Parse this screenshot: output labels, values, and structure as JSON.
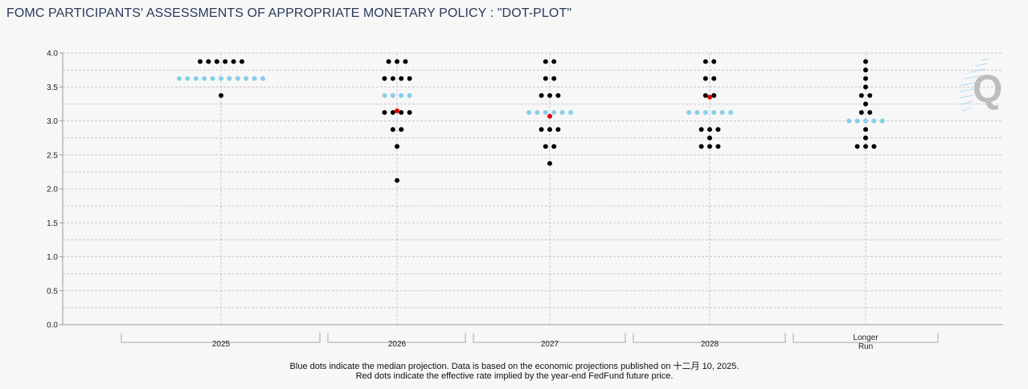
{
  "title": "FOMC PARTICIPANTS' ASSESSMENTS OF APPROPRIATE MONETARY POLICY : \"DOT-PLOT\"",
  "footnote": {
    "line1": "Blue dots indicate the median projection. Data is based on the economic projections published on 十二月 10, 2025.",
    "line2": "Red dots indicate the effective rate implied by the year-end FedFund future price."
  },
  "watermark": "Q",
  "colors": {
    "participant": "#000000",
    "median": "#87ceeb",
    "implied": "#e00000",
    "grid": "#c8c8c8",
    "axis": "#999999"
  },
  "chart_data": {
    "type": "scatter",
    "title": "FOMC PARTICIPANTS' ASSESSMENTS OF APPROPRIATE MONETARY POLICY : \"DOT-PLOT\"",
    "xlabel": "",
    "ylabel": "",
    "ylim": [
      0,
      4
    ],
    "yticks": [
      "0.0",
      "0.5",
      "1.0",
      "1.5",
      "2.0",
      "2.5",
      "3.0",
      "3.5",
      "4.0"
    ],
    "grid": true,
    "categories": [
      {
        "label": [
          "2025"
        ],
        "key": "2025"
      },
      {
        "label": [
          "2026"
        ],
        "key": "2026"
      },
      {
        "label": [
          "2027"
        ],
        "key": "2027"
      },
      {
        "label": [
          "2028"
        ],
        "key": "2028"
      },
      {
        "label": [
          "Longer",
          "Run"
        ],
        "key": "longer"
      }
    ],
    "dots": {
      "2025": [
        {
          "rate": 3.875,
          "count": 6
        },
        {
          "rate": 3.375,
          "count": 1
        }
      ],
      "2026": [
        {
          "rate": 3.875,
          "count": 3
        },
        {
          "rate": 3.625,
          "count": 4
        },
        {
          "rate": 3.125,
          "count": 4
        },
        {
          "rate": 2.875,
          "count": 2
        },
        {
          "rate": 2.625,
          "count": 1
        },
        {
          "rate": 2.125,
          "count": 1
        }
      ],
      "2027": [
        {
          "rate": 3.875,
          "count": 2
        },
        {
          "rate": 3.625,
          "count": 2
        },
        {
          "rate": 3.375,
          "count": 3
        },
        {
          "rate": 2.875,
          "count": 3
        },
        {
          "rate": 2.625,
          "count": 2
        },
        {
          "rate": 2.375,
          "count": 1
        }
      ],
      "2028": [
        {
          "rate": 3.875,
          "count": 2
        },
        {
          "rate": 3.625,
          "count": 2
        },
        {
          "rate": 3.375,
          "count": 2
        },
        {
          "rate": 2.875,
          "count": 3
        },
        {
          "rate": 2.75,
          "count": 1
        },
        {
          "rate": 2.625,
          "count": 3
        }
      ],
      "longer": [
        {
          "rate": 3.875,
          "count": 1
        },
        {
          "rate": 3.75,
          "count": 1
        },
        {
          "rate": 3.625,
          "count": 1
        },
        {
          "rate": 3.5,
          "count": 1
        },
        {
          "rate": 3.375,
          "count": 2
        },
        {
          "rate": 3.25,
          "count": 1
        },
        {
          "rate": 3.125,
          "count": 2
        },
        {
          "rate": 2.875,
          "count": 1
        },
        {
          "rate": 2.75,
          "count": 1
        },
        {
          "rate": 2.625,
          "count": 3
        }
      ]
    },
    "median": {
      "2025": {
        "rate": 3.625,
        "count": 11
      },
      "2026": {
        "rate": 3.375,
        "count": 4
      },
      "2027": {
        "rate": 3.125,
        "count": 6
      },
      "2028": {
        "rate": 3.125,
        "count": 6
      },
      "longer": {
        "rate": 3.0,
        "count": 5
      }
    },
    "implied": {
      "2026": 3.15,
      "2027": 3.07,
      "2028": 3.35
    }
  }
}
